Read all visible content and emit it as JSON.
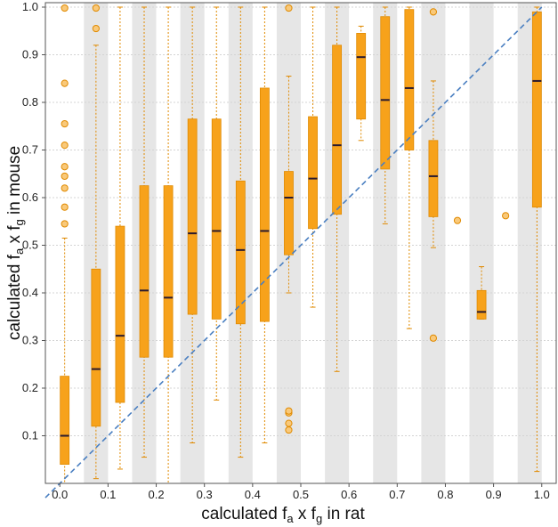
{
  "chart_data": {
    "type": "boxplot",
    "xlabel": {
      "main": "calculated f",
      "sub1": "a",
      "mid": " x f",
      "sub2": "g",
      "tail": " in rat"
    },
    "ylabel": {
      "main": "calculated f",
      "sub1": "a",
      "mid": " x f",
      "sub2": "g",
      "tail": " in mouse"
    },
    "xlim": [
      -0.03,
      1.03
    ],
    "ylim": [
      0,
      1.0
    ],
    "x_ticks": [
      "0.0",
      "0.1",
      "0.2",
      "0.3",
      "0.4",
      "0.5",
      "0.6",
      "0.7",
      "0.8",
      "0.9",
      "1.0"
    ],
    "y_ticks": [
      "0.1",
      "0.2",
      "0.3",
      "0.4",
      "0.5",
      "0.6",
      "0.7",
      "0.8",
      "0.9",
      "1.0"
    ],
    "grid": true,
    "boxes": [
      {
        "x": 0.01,
        "q1": 0.04,
        "median": 0.1,
        "q3": 0.225,
        "wlo": 0.0,
        "whi": 0.515,
        "outliers": [
          0.545,
          0.58,
          0.62,
          0.645,
          0.665,
          0.71,
          0.755,
          0.84,
          0.998
        ]
      },
      {
        "x": 0.075,
        "q1": 0.12,
        "median": 0.24,
        "q3": 0.45,
        "wlo": 0.01,
        "whi": 0.92,
        "outliers": [
          0.955,
          0.998
        ]
      },
      {
        "x": 0.125,
        "q1": 0.17,
        "median": 0.31,
        "q3": 0.54,
        "wlo": 0.03,
        "whi": 1.0,
        "outliers": []
      },
      {
        "x": 0.175,
        "q1": 0.265,
        "median": 0.405,
        "q3": 0.625,
        "wlo": 0.055,
        "whi": 1.0,
        "outliers": []
      },
      {
        "x": 0.225,
        "q1": 0.265,
        "median": 0.39,
        "q3": 0.625,
        "wlo": 0.0,
        "whi": 1.0,
        "outliers": []
      },
      {
        "x": 0.275,
        "q1": 0.355,
        "median": 0.525,
        "q3": 0.765,
        "wlo": 0.085,
        "whi": 1.0,
        "outliers": []
      },
      {
        "x": 0.325,
        "q1": 0.345,
        "median": 0.53,
        "q3": 0.765,
        "wlo": 0.175,
        "whi": 1.0,
        "outliers": []
      },
      {
        "x": 0.375,
        "q1": 0.335,
        "median": 0.49,
        "q3": 0.635,
        "wlo": 0.055,
        "whi": 1.0,
        "outliers": []
      },
      {
        "x": 0.425,
        "q1": 0.34,
        "median": 0.53,
        "q3": 0.83,
        "wlo": 0.085,
        "whi": 1.0,
        "outliers": []
      },
      {
        "x": 0.475,
        "q1": 0.48,
        "median": 0.6,
        "q3": 0.655,
        "wlo": 0.4,
        "whi": 0.855,
        "outliers": [
          0.112,
          0.126,
          0.148,
          0.152,
          0.998
        ]
      },
      {
        "x": 0.525,
        "q1": 0.535,
        "median": 0.64,
        "q3": 0.77,
        "wlo": 0.37,
        "whi": 1.0,
        "outliers": []
      },
      {
        "x": 0.575,
        "q1": 0.565,
        "median": 0.71,
        "q3": 0.92,
        "wlo": 0.235,
        "whi": 1.0,
        "outliers": []
      },
      {
        "x": 0.625,
        "q1": 0.765,
        "median": 0.895,
        "q3": 0.945,
        "wlo": 0.72,
        "whi": 0.96,
        "outliers": []
      },
      {
        "x": 0.675,
        "q1": 0.66,
        "median": 0.805,
        "q3": 0.98,
        "wlo": 0.545,
        "whi": 1.0,
        "outliers": []
      },
      {
        "x": 0.725,
        "q1": 0.7,
        "median": 0.83,
        "q3": 0.995,
        "wlo": 0.325,
        "whi": 1.0,
        "outliers": []
      },
      {
        "x": 0.775,
        "q1": 0.56,
        "median": 0.645,
        "q3": 0.72,
        "wlo": 0.495,
        "whi": 0.845,
        "outliers": [
          0.305,
          0.99
        ]
      },
      {
        "x": 0.825,
        "q1": null,
        "median": null,
        "q3": null,
        "wlo": null,
        "whi": null,
        "outliers": [
          0.552
        ]
      },
      {
        "x": 0.875,
        "q1": 0.345,
        "median": 0.36,
        "q3": 0.405,
        "wlo": 0.345,
        "whi": 0.455,
        "outliers": []
      },
      {
        "x": 0.925,
        "q1": null,
        "median": null,
        "q3": null,
        "wlo": null,
        "whi": null,
        "outliers": [
          0.562
        ]
      },
      {
        "x": 0.99,
        "q1": 0.58,
        "median": 0.845,
        "q3": 0.99,
        "wlo": 0.025,
        "whi": 1.0,
        "outliers": []
      }
    ],
    "identity_line": {
      "from": [
        -0.03,
        -0.03
      ],
      "to": [
        1.0,
        1.0
      ],
      "style": "dashed"
    },
    "colors": {
      "box_fill": "#f7a21b",
      "box_edge": "#e08a00",
      "median": "#2a1a2e",
      "whisker": "#e08a00",
      "outlier_fill": "#f9c97a",
      "outlier_edge": "#e08a00",
      "band": "#e6e6e6",
      "grid": "#d4d4d4",
      "identity": "#4a7fc1",
      "frame": "#555555"
    }
  }
}
